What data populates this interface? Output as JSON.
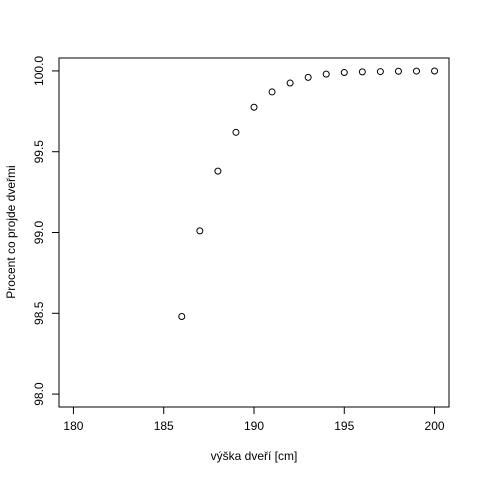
{
  "chart_data": {
    "type": "scatter",
    "xlabel": "výška dveří [cm]",
    "ylabel": "Procent co projde dveřmi",
    "x": [
      186,
      187,
      188,
      189,
      190,
      191,
      192,
      193,
      194,
      195,
      196,
      197,
      198,
      199,
      200
    ],
    "values": [
      98.48,
      99.01,
      99.38,
      99.62,
      99.775,
      99.87,
      99.925,
      99.96,
      99.98,
      99.99,
      99.994,
      99.996,
      99.998,
      99.999,
      99.9995
    ],
    "color": "#000000",
    "xlim": [
      179.2,
      200.8
    ],
    "xticks": [
      180,
      185,
      190,
      195,
      200
    ],
    "ylim": [
      97.92,
      100.08
    ],
    "yticks": [
      {
        "value": 98,
        "label": "98.0"
      },
      98.5,
      {
        "value": 99,
        "label": "99.0"
      },
      99.5,
      {
        "value": 100,
        "label": "100.0"
      }
    ]
  }
}
